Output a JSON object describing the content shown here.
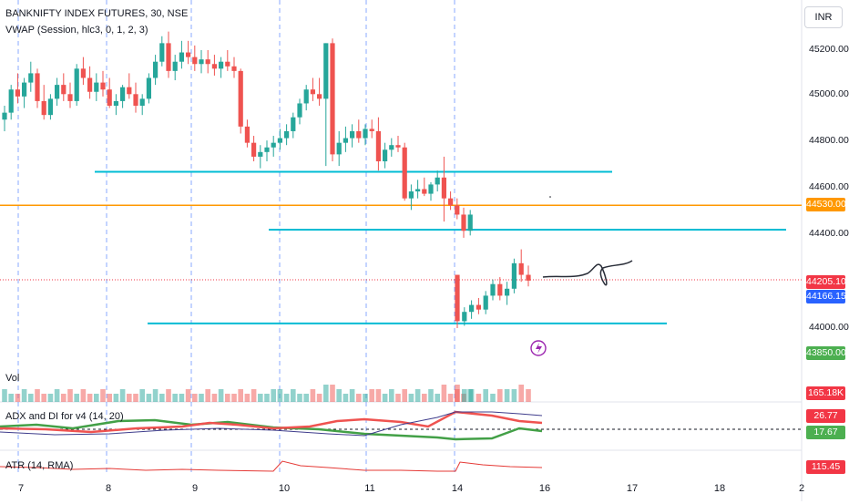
{
  "header": {
    "symbol": "BANKNIFTY INDEX FUTURES, 30, NSE",
    "indicator": "VWAP (Session, hlc3, 0, 1, 2, 3)",
    "currency": "INR"
  },
  "panes": {
    "volume": "Vol",
    "adx": "ADX and DI for v4 (14, 20)",
    "atr": "ATR (14, RMA)"
  },
  "price_axis": [
    "45200.00",
    "45000.00",
    "44800.00",
    "44600.00",
    "44400.00",
    "44000.00"
  ],
  "badges": {
    "level": "44530.00",
    "last": "44205.10",
    "vwap": "44166.15",
    "low": "43850.00",
    "volume": "165.18K",
    "adx_plus": "26.77",
    "adx_minus": "17.67",
    "atr": "115.45"
  },
  "time_axis": [
    "7",
    "8",
    "9",
    "10",
    "11",
    "14",
    "16",
    "17",
    "18",
    "2"
  ],
  "colors": {
    "up": "#26a69a",
    "down": "#ef5350",
    "level_line": "#00bcd4",
    "orange_line": "#ff9800",
    "vwap_badge": "#2962ff",
    "green_badge": "#4caf50",
    "red_badge": "#f23645",
    "event_icon": "#9c27b0"
  },
  "chart_data": {
    "type": "candlestick",
    "y_range": [
      43750,
      45400
    ],
    "horizontal_levels": [
      44675,
      44425,
      44020
    ],
    "orange_level": 44530,
    "candles": [
      [
        44900,
        44960,
        44850,
        44930
      ],
      [
        44930,
        45050,
        44900,
        45030
      ],
      [
        45030,
        45100,
        44970,
        45000
      ],
      [
        45000,
        45080,
        44950,
        45060
      ],
      [
        45060,
        45150,
        45020,
        45100
      ],
      [
        45100,
        45120,
        44950,
        44980
      ],
      [
        44980,
        45050,
        44900,
        44920
      ],
      [
        44920,
        45010,
        44900,
        44990
      ],
      [
        44990,
        45080,
        44960,
        45050
      ],
      [
        45050,
        45100,
        44980,
        45010
      ],
      [
        45010,
        45060,
        44950,
        44980
      ],
      [
        44980,
        45140,
        44960,
        45120
      ],
      [
        45120,
        45170,
        45050,
        45080
      ],
      [
        45080,
        45130,
        44990,
        45020
      ],
      [
        45020,
        45100,
        44980,
        45060
      ],
      [
        45060,
        45110,
        45000,
        45030
      ],
      [
        45030,
        45080,
        44950,
        44960
      ],
      [
        44960,
        45010,
        44920,
        44980
      ],
      [
        44980,
        45050,
        44950,
        45040
      ],
      [
        45040,
        45100,
        44990,
        45010
      ],
      [
        45010,
        45060,
        44930,
        44960
      ],
      [
        44960,
        45010,
        44920,
        44990
      ],
      [
        44990,
        45100,
        44970,
        45080
      ],
      [
        45080,
        45180,
        45050,
        45150
      ],
      [
        45150,
        45260,
        45130,
        45230
      ],
      [
        45230,
        45280,
        45080,
        45110
      ],
      [
        45110,
        45180,
        45070,
        45150
      ],
      [
        45150,
        45240,
        45120,
        45190
      ],
      [
        45190,
        45240,
        45140,
        45170
      ],
      [
        45170,
        45220,
        45110,
        45140
      ],
      [
        45140,
        45200,
        45100,
        45160
      ],
      [
        45160,
        45200,
        45100,
        45140
      ],
      [
        45140,
        45180,
        45090,
        45120
      ],
      [
        45120,
        45170,
        45080,
        45150
      ],
      [
        45150,
        45200,
        45110,
        45130
      ],
      [
        45130,
        45170,
        45080,
        45110
      ],
      [
        45110,
        45120,
        44840,
        44870
      ],
      [
        44870,
        44900,
        44780,
        44800
      ],
      [
        44800,
        44830,
        44720,
        44740
      ],
      [
        44740,
        44790,
        44690,
        44760
      ],
      [
        44760,
        44810,
        44720,
        44780
      ],
      [
        44780,
        44830,
        44740,
        44800
      ],
      [
        44800,
        44860,
        44770,
        44820
      ],
      [
        44820,
        44880,
        44790,
        44850
      ],
      [
        44850,
        44930,
        44820,
        44910
      ],
      [
        44910,
        44990,
        44880,
        44970
      ],
      [
        44970,
        45050,
        44940,
        45030
      ],
      [
        45030,
        45080,
        44980,
        45010
      ],
      [
        45010,
        45080,
        44960,
        44990
      ],
      [
        44990,
        45230,
        44700,
        45230
      ],
      [
        45230,
        45250,
        44720,
        44750
      ],
      [
        44750,
        44850,
        44700,
        44800
      ],
      [
        44800,
        44870,
        44760,
        44820
      ],
      [
        44820,
        44880,
        44780,
        44850
      ],
      [
        44850,
        44900,
        44800,
        44820
      ],
      [
        44820,
        44880,
        44790,
        44860
      ],
      [
        44860,
        44900,
        44820,
        44850
      ],
      [
        44850,
        44910,
        44680,
        44720
      ],
      [
        44720,
        44800,
        44690,
        44770
      ],
      [
        44770,
        44820,
        44740,
        44790
      ],
      [
        44790,
        44830,
        44760,
        44780
      ],
      [
        44780,
        44800,
        44550,
        44560
      ],
      [
        44560,
        44620,
        44510,
        44590
      ],
      [
        44590,
        44640,
        44560,
        44600
      ],
      [
        44600,
        44650,
        44570,
        44580
      ],
      [
        44580,
        44630,
        44550,
        44620
      ],
      [
        44620,
        44680,
        44590,
        44650
      ],
      [
        44650,
        44740,
        44460,
        44560
      ],
      [
        44560,
        44590,
        44510,
        44530
      ],
      [
        44530,
        44560,
        44470,
        44490
      ],
      [
        44490,
        44520,
        44390,
        44420
      ],
      [
        44420,
        44510,
        44400,
        44490
      ],
      [
        44230,
        44230,
        44000,
        44030
      ],
      [
        44030,
        44090,
        44010,
        44070
      ],
      [
        44070,
        44120,
        44040,
        44100
      ],
      [
        44100,
        44130,
        44060,
        44080
      ],
      [
        44080,
        44160,
        44060,
        44140
      ],
      [
        44140,
        44210,
        44120,
        44190
      ],
      [
        44190,
        44220,
        44120,
        44140
      ],
      [
        44140,
        44200,
        44100,
        44170
      ],
      [
        44170,
        44300,
        44150,
        44280
      ],
      [
        44280,
        44340,
        44200,
        44230
      ],
      [
        44230,
        44270,
        44180,
        44205
      ]
    ],
    "volumes": [
      2,
      1,
      1,
      2,
      1,
      2,
      1,
      1,
      2,
      1,
      2,
      1,
      2,
      1,
      1,
      2,
      1,
      1,
      2,
      1,
      1,
      2,
      1,
      2,
      1,
      2,
      1,
      1,
      2,
      1,
      1,
      2,
      1,
      2,
      1,
      1,
      2,
      1,
      2,
      1,
      1,
      2,
      2,
      1,
      2,
      1,
      1,
      2,
      1,
      3,
      3,
      2,
      1,
      2,
      1,
      1,
      2,
      2,
      1,
      2,
      1,
      2,
      1,
      2,
      1,
      2,
      1,
      3,
      1,
      2,
      1,
      2,
      3,
      2,
      2,
      1,
      2,
      1,
      2,
      2,
      2,
      3,
      2
    ]
  }
}
